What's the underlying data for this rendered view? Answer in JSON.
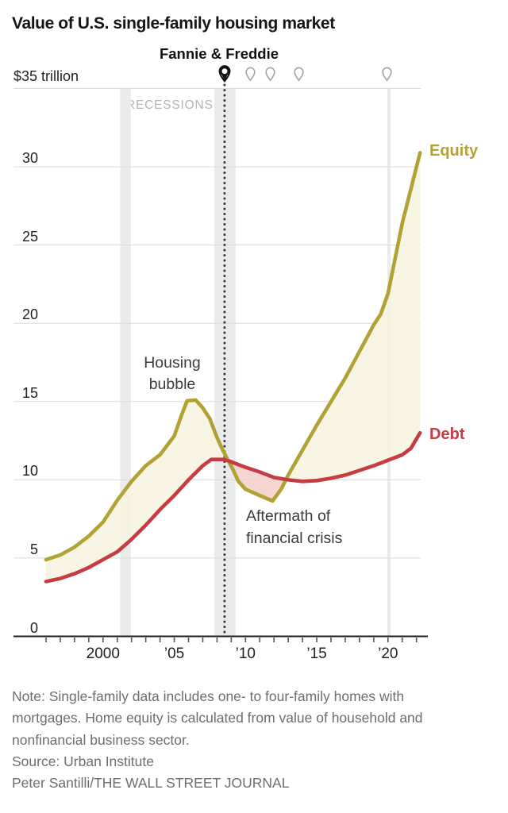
{
  "header": {
    "title": "Value of U.S. single-family housing market"
  },
  "chart_data": {
    "type": "area",
    "title": "Value of U.S. single-family housing market",
    "unit_label": "$35 trillion",
    "xlim": [
      1996,
      2022.25
    ],
    "ylim": [
      0,
      35
    ],
    "grid": "horizontal",
    "y_ticks": [
      0,
      5,
      10,
      15,
      20,
      25,
      30
    ],
    "x_ticks": [
      {
        "label": "2000",
        "year": 2000
      },
      {
        "label": "’05",
        "year": 2005
      },
      {
        "label": "’10",
        "year": 2010
      },
      {
        "label": "’15",
        "year": 2015
      },
      {
        "label": "’20",
        "year": 2020
      }
    ],
    "series": [
      {
        "name": "Equity",
        "color": "#b2a236",
        "points": [
          [
            1996,
            4.9
          ],
          [
            1997,
            5.2
          ],
          [
            1998,
            5.7
          ],
          [
            1999,
            6.4
          ],
          [
            2000,
            7.3
          ],
          [
            2001,
            8.7
          ],
          [
            2002,
            9.9
          ],
          [
            2003,
            10.9
          ],
          [
            2004,
            11.6
          ],
          [
            2005,
            12.8
          ],
          [
            2005.5,
            14.1
          ],
          [
            2005.9,
            15.05
          ],
          [
            2006.5,
            15.1
          ],
          [
            2007,
            14.6
          ],
          [
            2007.5,
            13.9
          ],
          [
            2008,
            12.7
          ],
          [
            2008.4,
            11.9
          ],
          [
            2008.8,
            11.2
          ],
          [
            2009.1,
            10.7
          ],
          [
            2009.5,
            9.9
          ],
          [
            2010,
            9.4
          ],
          [
            2011,
            9.0
          ],
          [
            2011.9,
            8.65
          ],
          [
            2012.5,
            9.4
          ],
          [
            2013,
            10.3
          ],
          [
            2014,
            11.9
          ],
          [
            2015,
            13.5
          ],
          [
            2016,
            15.0
          ],
          [
            2017,
            16.5
          ],
          [
            2018,
            18.2
          ],
          [
            2019,
            19.9
          ],
          [
            2019.5,
            20.6
          ],
          [
            2020,
            21.9
          ],
          [
            2021,
            26.4
          ],
          [
            2022.25,
            30.9
          ]
        ]
      },
      {
        "name": "Debt",
        "color": "#c53c42",
        "points": [
          [
            1996,
            3.5
          ],
          [
            1997,
            3.7
          ],
          [
            1998,
            4.0
          ],
          [
            1999,
            4.4
          ],
          [
            2000,
            4.9
          ],
          [
            2001,
            5.4
          ],
          [
            2002,
            6.2
          ],
          [
            2003,
            7.1
          ],
          [
            2004,
            8.1
          ],
          [
            2005,
            9.0
          ],
          [
            2006,
            10.0
          ],
          [
            2007,
            10.9
          ],
          [
            2007.6,
            11.3
          ],
          [
            2008.5,
            11.3
          ],
          [
            2009,
            11.15
          ],
          [
            2010,
            10.8
          ],
          [
            2011,
            10.5
          ],
          [
            2012,
            10.15
          ],
          [
            2013,
            10.0
          ],
          [
            2014,
            9.9
          ],
          [
            2015,
            9.95
          ],
          [
            2016,
            10.1
          ],
          [
            2017,
            10.3
          ],
          [
            2018,
            10.6
          ],
          [
            2019,
            10.9
          ],
          [
            2020,
            11.25
          ],
          [
            2021,
            11.6
          ],
          [
            2021.6,
            12.0
          ],
          [
            2022.25,
            13.0
          ]
        ]
      }
    ],
    "fills": {
      "equity_above": "#f8f4e1",
      "debt_above": "#f3cfc9"
    },
    "recessions": {
      "label": "RECESSIONS",
      "spans": [
        [
          2001.2,
          2001.95
        ],
        [
          2007.82,
          2009.3
        ],
        [
          2019.95,
          2020.18
        ]
      ]
    },
    "event_line": {
      "label": "Fannie & Freddie",
      "year": 2008.53,
      "pin_years": [
        2008.53,
        2010.32,
        2011.76,
        2013.77,
        2019.9
      ]
    },
    "annotations": [
      {
        "id": "housing-bubble",
        "lines": [
          "Housing",
          "bubble"
        ]
      },
      {
        "id": "aftermath",
        "lines": [
          "Aftermath of",
          "financial crisis"
        ]
      }
    ],
    "colors": {
      "grid": "#dbdbdb",
      "axis": "#1e1e1e",
      "tick": "#555555",
      "band": "#ebebeb",
      "dotted_line": "#3a3a3a",
      "pin_gray": "#a6a6a6",
      "pin_dark": "#151515"
    }
  },
  "footer": {
    "note_lines": [
      "Note: Single-family data includes one- to four-family homes with",
      "mortgages. Home equity is calculated from value of household and",
      "nonfinancial business sector."
    ],
    "source": "Source: Urban Institute",
    "credit": "Peter Santilli/THE WALL STREET JOURNAL"
  }
}
